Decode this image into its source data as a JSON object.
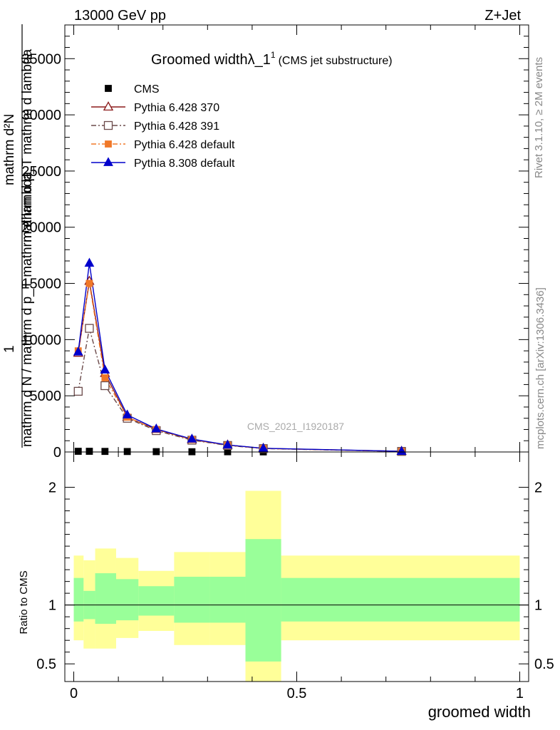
{
  "header": {
    "left": "13000 GeV pp",
    "right": "Z+Jet"
  },
  "side_text": {
    "rivet": "Rivet 3.1.10, ≥ 2M events",
    "mcplots": "mcplots.cern.ch [arXiv:1306.3436]"
  },
  "watermark": "CMS_2021_I1920187",
  "ratio_ylabel": "Ratio to CMS",
  "chart_data": [
    {
      "type": "line",
      "title": "Groomed width",
      "title_symbol": "λ_1",
      "title_sup": "1",
      "title_suffix": "(CMS jet substructure)",
      "ylabel_lines": [
        "mathrm d N / mathrm d p_T mathrm d lambda",
        "1",
        "mathrm d²N",
        "mathrm d p_T mathrm d lambda"
      ],
      "xlim": [
        -0.02,
        1.02
      ],
      "ylim": [
        0,
        38000
      ],
      "yticks": [
        0,
        5000,
        10000,
        15000,
        20000,
        25000,
        30000,
        35000
      ],
      "ytick_labels": [
        "0",
        "5000",
        "10000",
        "15000",
        "20000",
        "25000",
        "30000",
        "35000"
      ],
      "x": [
        0.01,
        0.035,
        0.07,
        0.12,
        0.185,
        0.265,
        0.345,
        0.425,
        0.735
      ],
      "series": [
        {
          "name": "CMS",
          "color": "#000000",
          "marker": "filled-square",
          "line": "none",
          "y": [
            60,
            60,
            50,
            40,
            30,
            20,
            20,
            10,
            5
          ]
        },
        {
          "name": "Pythia 6.428 370",
          "color": "#8b1a1a",
          "marker": "open-triangle",
          "line": "solid",
          "y": [
            8800,
            15200,
            7000,
            3100,
            2000,
            1100,
            620,
            320,
            60
          ]
        },
        {
          "name": "Pythia 6.428 391",
          "color": "#6b4a4a",
          "marker": "open-square",
          "line": "dash-dot",
          "y": [
            5400,
            11000,
            5900,
            3000,
            1900,
            1050,
            580,
            300,
            50
          ]
        },
        {
          "name": "Pythia 6.428 default",
          "color": "#f07828",
          "marker": "filled-square",
          "line": "dash-dot",
          "y": [
            9000,
            15000,
            6600,
            3100,
            2000,
            1100,
            600,
            310,
            55
          ]
        },
        {
          "name": "Pythia 8.308 default",
          "color": "#0000cc",
          "marker": "filled-triangle",
          "line": "solid",
          "y": [
            8900,
            16800,
            7300,
            3300,
            2050,
            1150,
            620,
            330,
            60
          ]
        }
      ],
      "legend_placement": "top-left"
    },
    {
      "type": "area",
      "ylabel": "Ratio to CMS",
      "xlabel": "groomed width",
      "xlim": [
        -0.02,
        1.02
      ],
      "ylim": [
        0.35,
        2.3
      ],
      "yticks": [
        0.5,
        1,
        2
      ],
      "ytick_labels": [
        "0.5",
        "1",
        "2"
      ],
      "xticks": [
        0,
        0.5,
        1
      ],
      "xtick_labels": [
        "0",
        "0.5",
        "1"
      ],
      "reference_line": 1,
      "bins": [
        {
          "lo": 0.0,
          "hi": 0.022,
          "yellow": [
            0.7,
            1.42
          ],
          "green": [
            0.86,
            1.23
          ]
        },
        {
          "lo": 0.022,
          "hi": 0.048,
          "yellow": [
            0.63,
            1.38
          ],
          "green": [
            0.88,
            1.12
          ]
        },
        {
          "lo": 0.048,
          "hi": 0.095,
          "yellow": [
            0.63,
            1.48
          ],
          "green": [
            0.84,
            1.27
          ]
        },
        {
          "lo": 0.095,
          "hi": 0.145,
          "yellow": [
            0.72,
            1.4
          ],
          "green": [
            0.87,
            1.22
          ]
        },
        {
          "lo": 0.145,
          "hi": 0.225,
          "yellow": [
            0.78,
            1.29
          ],
          "green": [
            0.91,
            1.16
          ]
        },
        {
          "lo": 0.225,
          "hi": 0.305,
          "yellow": [
            0.66,
            1.45
          ],
          "green": [
            0.85,
            1.24
          ]
        },
        {
          "lo": 0.305,
          "hi": 0.385,
          "yellow": [
            0.66,
            1.45
          ],
          "green": [
            0.85,
            1.24
          ]
        },
        {
          "lo": 0.385,
          "hi": 0.465,
          "yellow": [
            0.35,
            1.97
          ],
          "green": [
            0.52,
            1.56
          ]
        },
        {
          "lo": 0.465,
          "hi": 1.0,
          "yellow": [
            0.7,
            1.42
          ],
          "green": [
            0.86,
            1.23
          ]
        }
      ]
    }
  ]
}
